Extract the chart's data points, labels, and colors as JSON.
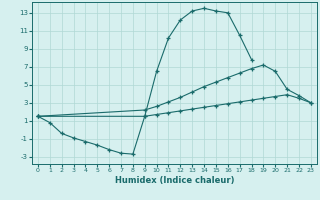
{
  "xlabel": "Humidex (Indice chaleur)",
  "xlim": [
    -0.5,
    23.5
  ],
  "ylim": [
    -3.8,
    14.2
  ],
  "yticks": [
    -3,
    -1,
    1,
    3,
    5,
    7,
    9,
    11,
    13
  ],
  "xticks": [
    0,
    1,
    2,
    3,
    4,
    5,
    6,
    7,
    8,
    9,
    10,
    11,
    12,
    13,
    14,
    15,
    16,
    17,
    18,
    19,
    20,
    21,
    22,
    23
  ],
  "bg_color": "#d6f0ef",
  "grid_color": "#b0d8d5",
  "line_color": "#1a6b6b",
  "line1_x": [
    0,
    1,
    2,
    3,
    4,
    5,
    6,
    7,
    8,
    9,
    10,
    11,
    12,
    13,
    14,
    15,
    16,
    17,
    18
  ],
  "line1_y": [
    1.5,
    0.8,
    -0.4,
    -0.9,
    -1.3,
    -1.7,
    -2.2,
    -2.6,
    -2.7,
    1.5,
    6.5,
    10.2,
    12.2,
    13.2,
    13.5,
    13.2,
    13.0,
    10.5,
    7.8
  ],
  "line2_x": [
    0,
    9,
    10,
    11,
    12,
    13,
    14,
    15,
    16,
    17,
    18,
    19,
    20,
    21,
    22,
    23
  ],
  "line2_y": [
    1.5,
    2.2,
    2.6,
    3.1,
    3.6,
    4.2,
    4.8,
    5.3,
    5.8,
    6.3,
    6.8,
    7.2,
    6.5,
    4.5,
    3.8,
    3.0
  ],
  "line3_x": [
    0,
    9,
    10,
    11,
    12,
    13,
    14,
    15,
    16,
    17,
    18,
    19,
    20,
    21,
    22,
    23
  ],
  "line3_y": [
    1.5,
    1.5,
    1.7,
    1.9,
    2.1,
    2.3,
    2.5,
    2.7,
    2.9,
    3.1,
    3.3,
    3.5,
    3.7,
    3.9,
    3.5,
    3.0
  ]
}
